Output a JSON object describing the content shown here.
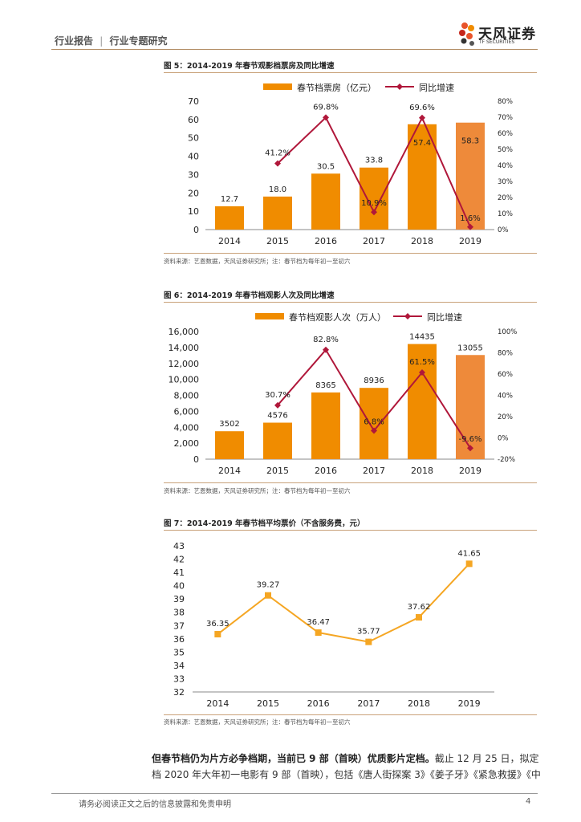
{
  "header": {
    "report_type": "行业报告",
    "separator": "|",
    "report_subtype": "行业专题研究",
    "company_cn": "天风证券",
    "company_en": "TF SECURITIES"
  },
  "figures": [
    {
      "title": "图 5：2014-2019 年春节观影档票房及同比增速",
      "source": "资料来源：艺恩数据，天风证券研究所；注：春节档为每年初一至初六"
    },
    {
      "title": "图 6：2014-2019 年春节档观影人次及同比增速",
      "source": "资料来源：艺恩数据，天风证券研究所；注：春节档为每年初一至初六"
    },
    {
      "title": "图 7：2014-2019 年春节档平均票价（不含服务费，元）",
      "source": "资料来源：艺恩数据，天风证券研究所；注：春节档为每年初一至初六"
    }
  ],
  "chart_data": [
    {
      "type": "bar+line",
      "categories": [
        "2014",
        "2015",
        "2016",
        "2017",
        "2018",
        "2019"
      ],
      "series": [
        {
          "name": "春节档票房（亿元）",
          "values": [
            12.7,
            18.0,
            30.5,
            33.8,
            57.4,
            58.3
          ],
          "labels": [
            "12.7",
            "18.0",
            "30.5",
            "33.8",
            "57.4",
            "58.3"
          ]
        },
        {
          "name": "同比增速",
          "values": [
            null,
            41.2,
            69.8,
            10.9,
            69.6,
            1.6
          ],
          "labels": [
            "",
            "41.2%",
            "69.8%",
            "10.9%",
            "69.6%",
            "1.6%"
          ]
        }
      ],
      "left_ticks": [
        "70",
        "60",
        "50",
        "40",
        "30",
        "20",
        "10",
        "0"
      ],
      "right_ticks": [
        "80%",
        "70%",
        "60%",
        "50%",
        "40%",
        "30%",
        "20%",
        "10%",
        "0%"
      ],
      "ylim": [
        0,
        70
      ],
      "y2lim": [
        0,
        80
      ]
    },
    {
      "type": "bar+line",
      "categories": [
        "2014",
        "2015",
        "2016",
        "2017",
        "2018",
        "2019"
      ],
      "series": [
        {
          "name": "春节档观影人次（万人）",
          "values": [
            3502,
            4576,
            8365,
            8936,
            14435,
            13055
          ],
          "labels": [
            "3502",
            "4576",
            "8365",
            "8936",
            "14435",
            "13055"
          ]
        },
        {
          "name": "同比增速",
          "values": [
            null,
            30.7,
            82.8,
            6.8,
            61.5,
            -9.6
          ],
          "labels": [
            "",
            "30.7%",
            "82.8%",
            "6.8%",
            "61.5%",
            "-9.6%"
          ]
        }
      ],
      "left_ticks": [
        "16,000",
        "14,000",
        "12,000",
        "10,000",
        "8,000",
        "6,000",
        "4,000",
        "2,000",
        "0"
      ],
      "right_ticks": [
        "100%",
        "80%",
        "60%",
        "40%",
        "20%",
        "0%",
        "-20%"
      ],
      "ylim": [
        0,
        16000
      ],
      "y2lim": [
        -20,
        100
      ]
    },
    {
      "type": "line",
      "categories": [
        "2014",
        "2015",
        "2016",
        "2017",
        "2018",
        "2019"
      ],
      "series": [
        {
          "name": "平均票价（元）",
          "values": [
            36.35,
            39.27,
            36.47,
            35.77,
            37.62,
            41.65
          ],
          "labels": [
            "36.35",
            "39.27",
            "36.47",
            "35.77",
            "37.62",
            "41.65"
          ]
        }
      ],
      "left_ticks": [
        "43",
        "42",
        "41",
        "40",
        "39",
        "38",
        "37",
        "36",
        "35",
        "34",
        "33",
        "32"
      ],
      "ylim": [
        32,
        43
      ]
    }
  ],
  "paragraph": {
    "bold": "但春节档仍为片方必争档期，当前已 9 部（首映）优质影片定档。",
    "line1_rest": "截止 12 月 25 日，拟定",
    "line2": "档 2020 年大年初一电影有 9 部（首映），包括《唐人街探案 3》《姜子牙》《紧急救援》《中"
  },
  "footer": {
    "disclaimer": "请务必阅读正文之后的信息披露和免责申明",
    "page": "4"
  },
  "colors": {
    "bar": "#f08c00",
    "bar_last": "#ee8a3a",
    "line1": "#b0173a",
    "line3": "#f5a623",
    "accent_line": "#c9a27a"
  }
}
